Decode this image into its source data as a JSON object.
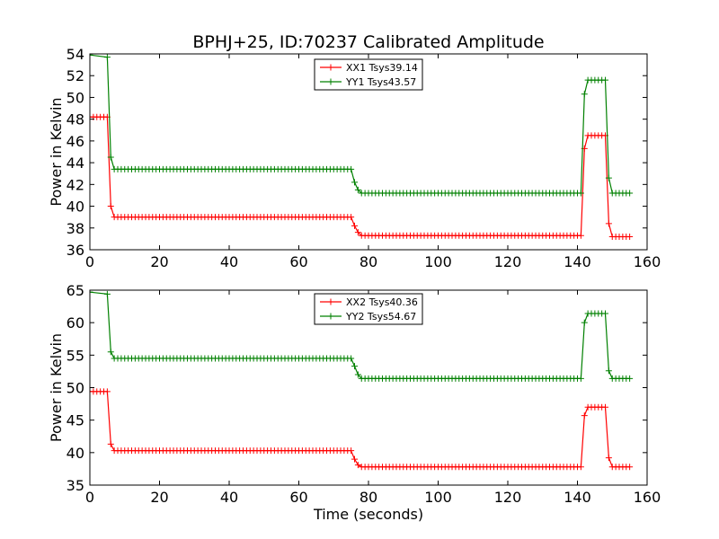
{
  "chart_data": [
    {
      "type": "line",
      "title": "BPHJ+25, ID:70237 Calibrated Amplitude",
      "xlabel": "",
      "ylabel": "Power in Kelvin",
      "xlim": [
        0,
        160
      ],
      "ylim": [
        36,
        54
      ],
      "xticks": [
        0,
        20,
        40,
        60,
        80,
        100,
        120,
        140,
        160
      ],
      "yticks": [
        36,
        38,
        40,
        42,
        44,
        46,
        48,
        50,
        52,
        54
      ],
      "legend_position": "upper-center",
      "series": [
        {
          "name": "XX1 Tsys39.14",
          "color": "#ff0000",
          "segments": [
            {
              "x": [
                0,
                5
              ],
              "y": 48.2
            },
            {
              "x": [
                6,
                7
              ],
              "y": [
                40.0,
                39.1
              ]
            },
            {
              "x": [
                7,
                75
              ],
              "y": 39.0
            },
            {
              "x": [
                76,
                77,
                78
              ],
              "y": [
                38.2,
                37.6,
                37.4
              ]
            },
            {
              "x": [
                78,
                141
              ],
              "y": 37.3
            },
            {
              "x": [
                142,
                143
              ],
              "y": [
                45.3,
                46.4
              ]
            },
            {
              "x": [
                143,
                148
              ],
              "y": 46.5
            },
            {
              "x": [
                149,
                150
              ],
              "y": [
                38.4,
                37.3
              ]
            },
            {
              "x": [
                150,
                155
              ],
              "y": 37.2
            }
          ]
        },
        {
          "name": "YY1 Tsys43.57",
          "color": "#008000",
          "segments": [
            {
              "x": [
                0,
                5
              ],
              "y": [
                53.9,
                53.7
              ]
            },
            {
              "x": [
                6,
                7
              ],
              "y": [
                44.5,
                43.6
              ]
            },
            {
              "x": [
                7,
                75
              ],
              "y": 43.4
            },
            {
              "x": [
                76,
                77,
                78
              ],
              "y": [
                42.2,
                41.5,
                41.2
              ]
            },
            {
              "x": [
                78,
                141
              ],
              "y": 41.2
            },
            {
              "x": [
                142,
                143
              ],
              "y": [
                50.3,
                51.6
              ]
            },
            {
              "x": [
                143,
                148
              ],
              "y": 51.6
            },
            {
              "x": [
                149,
                150
              ],
              "y": [
                42.6,
                41.2
              ]
            },
            {
              "x": [
                150,
                155
              ],
              "y": 41.2
            }
          ]
        }
      ]
    },
    {
      "type": "line",
      "title": "",
      "xlabel": "Time (seconds)",
      "ylabel": "Power in Kelvin",
      "xlim": [
        0,
        160
      ],
      "ylim": [
        35,
        65
      ],
      "xticks": [
        0,
        20,
        40,
        60,
        80,
        100,
        120,
        140,
        160
      ],
      "yticks": [
        35,
        40,
        45,
        50,
        55,
        60,
        65
      ],
      "legend_position": "upper-center",
      "series": [
        {
          "name": "XX2 Tsys40.36",
          "color": "#ff0000",
          "segments": [
            {
              "x": [
                0,
                5
              ],
              "y": 49.4
            },
            {
              "x": [
                6,
                7
              ],
              "y": [
                41.3,
                40.5
              ]
            },
            {
              "x": [
                7,
                75
              ],
              "y": 40.3
            },
            {
              "x": [
                76,
                77,
                78
              ],
              "y": [
                39.0,
                38.1,
                37.8
              ]
            },
            {
              "x": [
                78,
                141
              ],
              "y": 37.8
            },
            {
              "x": [
                142,
                143
              ],
              "y": [
                45.7,
                46.8
              ]
            },
            {
              "x": [
                143,
                148
              ],
              "y": 47.0
            },
            {
              "x": [
                149,
                150
              ],
              "y": [
                39.2,
                37.8
              ]
            },
            {
              "x": [
                150,
                155
              ],
              "y": 37.8
            }
          ]
        },
        {
          "name": "YY2 Tsys54.67",
          "color": "#008000",
          "segments": [
            {
              "x": [
                0,
                5
              ],
              "y": [
                64.7,
                64.4
              ]
            },
            {
              "x": [
                6,
                7
              ],
              "y": [
                55.5,
                54.8
              ]
            },
            {
              "x": [
                7,
                75
              ],
              "y": 54.5
            },
            {
              "x": [
                76,
                77,
                78
              ],
              "y": [
                53.3,
                52.0,
                51.2
              ]
            },
            {
              "x": [
                78,
                141
              ],
              "y": 51.4
            },
            {
              "x": [
                142,
                143
              ],
              "y": [
                60.0,
                61.3
              ]
            },
            {
              "x": [
                143,
                148
              ],
              "y": 61.4
            },
            {
              "x": [
                149,
                150
              ],
              "y": [
                52.6,
                51.3
              ]
            },
            {
              "x": [
                150,
                155
              ],
              "y": 51.4
            }
          ]
        }
      ]
    }
  ]
}
